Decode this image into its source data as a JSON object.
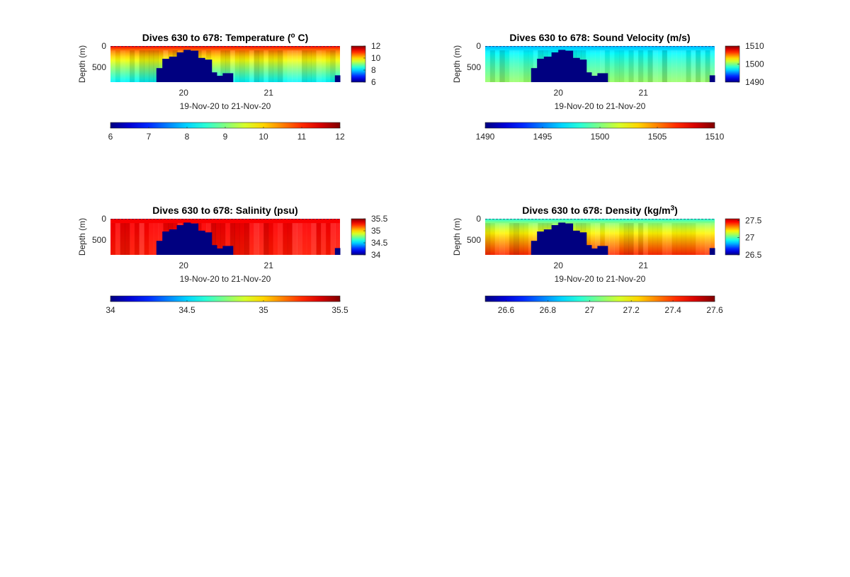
{
  "figure": {
    "background": "#ffffff"
  },
  "chart_data": [
    {
      "type": "heatmap",
      "title_text": "Dives 630 to 678: Temperature (",
      "title_sup": "o",
      "title_tail": " C)",
      "ylabel": "Depth (m)",
      "xlabel": "19-Nov-20 to 21-Nov-20",
      "xlim": [
        19.14,
        21.84
      ],
      "xticks": [
        20,
        21
      ],
      "xtick_labels": [
        "20",
        "21"
      ],
      "ylim": [
        0,
        850
      ],
      "yticks": [
        0,
        500
      ],
      "ytick_labels": [
        "0",
        "500"
      ],
      "color_scale": "jet",
      "clim": [
        6,
        12
      ],
      "side_colorbar_ticks": [
        12,
        10,
        8,
        6
      ],
      "side_colorbar_labels": [
        "12",
        "10",
        "8",
        "6"
      ],
      "bottom_colorbar_ticks": [
        6,
        7,
        8,
        9,
        10,
        11,
        12
      ],
      "bottom_colorbar_labels": [
        "6",
        "7",
        "8",
        "9",
        "10",
        "11",
        "12"
      ],
      "surface_value": 11.3,
      "bottom_value": 8.2,
      "no_data_regions": [
        {
          "x": [
            19.68,
            19.75
          ],
          "depth_top": 520
        },
        {
          "x": [
            19.75,
            19.83
          ],
          "depth_top": 300
        },
        {
          "x": [
            19.83,
            19.92
          ],
          "depth_top": 250
        },
        {
          "x": [
            19.92,
            20.0
          ],
          "depth_top": 150
        },
        {
          "x": [
            20.0,
            20.08
          ],
          "depth_top": 90
        },
        {
          "x": [
            20.08,
            20.17
          ],
          "depth_top": 110
        },
        {
          "x": [
            20.17,
            20.25
          ],
          "depth_top": 280
        },
        {
          "x": [
            20.25,
            20.33
          ],
          "depth_top": 320
        },
        {
          "x": [
            20.33,
            20.39
          ],
          "depth_top": 620
        },
        {
          "x": [
            20.39,
            20.46
          ],
          "depth_top": 700
        },
        {
          "x": [
            20.46,
            20.58
          ],
          "depth_top": 640
        },
        {
          "x": [
            21.78,
            21.84
          ],
          "depth_top": 690
        }
      ]
    },
    {
      "type": "heatmap",
      "title_text": "Dives 630 to 678: Sound Velocity (m/s)",
      "title_sup": "",
      "title_tail": "",
      "ylabel": "Depth (m)",
      "xlabel": "19-Nov-20 to 21-Nov-20",
      "xlim": [
        19.14,
        21.84
      ],
      "xticks": [
        20,
        21
      ],
      "xtick_labels": [
        "20",
        "21"
      ],
      "ylim": [
        0,
        850
      ],
      "yticks": [
        0,
        500
      ],
      "ytick_labels": [
        "0",
        "500"
      ],
      "color_scale": "jet",
      "clim": [
        1490,
        1510
      ],
      "side_colorbar_ticks": [
        1510,
        1500,
        1490
      ],
      "side_colorbar_labels": [
        "1510",
        "1500",
        "1490"
      ],
      "bottom_colorbar_ticks": [
        1490,
        1495,
        1500,
        1505,
        1510
      ],
      "bottom_colorbar_labels": [
        "1490",
        "1495",
        "1500",
        "1505",
        "1510"
      ],
      "surface_value": 1496,
      "bottom_value": 1500.5,
      "no_data_regions": [
        {
          "x": [
            19.68,
            19.75
          ],
          "depth_top": 520
        },
        {
          "x": [
            19.75,
            19.83
          ],
          "depth_top": 300
        },
        {
          "x": [
            19.83,
            19.92
          ],
          "depth_top": 250
        },
        {
          "x": [
            19.92,
            20.0
          ],
          "depth_top": 150
        },
        {
          "x": [
            20.0,
            20.08
          ],
          "depth_top": 90
        },
        {
          "x": [
            20.08,
            20.17
          ],
          "depth_top": 110
        },
        {
          "x": [
            20.17,
            20.25
          ],
          "depth_top": 280
        },
        {
          "x": [
            20.25,
            20.33
          ],
          "depth_top": 320
        },
        {
          "x": [
            20.33,
            20.39
          ],
          "depth_top": 620
        },
        {
          "x": [
            20.39,
            20.46
          ],
          "depth_top": 700
        },
        {
          "x": [
            20.46,
            20.58
          ],
          "depth_top": 640
        },
        {
          "x": [
            21.78,
            21.84
          ],
          "depth_top": 690
        }
      ]
    },
    {
      "type": "heatmap",
      "title_text": "Dives 630 to 678: Salinity (psu)",
      "title_sup": "",
      "title_tail": "",
      "ylabel": "Depth (m)",
      "xlabel": "19-Nov-20 to 21-Nov-20",
      "xlim": [
        19.14,
        21.84
      ],
      "xticks": [
        20,
        21
      ],
      "xtick_labels": [
        "20",
        "21"
      ],
      "ylim": [
        0,
        850
      ],
      "yticks": [
        0,
        500
      ],
      "ytick_labels": [
        "0",
        "500"
      ],
      "color_scale": "jet",
      "clim": [
        34,
        35.5
      ],
      "side_colorbar_ticks": [
        35.5,
        35,
        34.5,
        34
      ],
      "side_colorbar_labels": [
        "35.5",
        "35",
        "34.5",
        "34"
      ],
      "bottom_colorbar_ticks": [
        34,
        34.5,
        35,
        35.5
      ],
      "bottom_colorbar_labels": [
        "34",
        "34.5",
        "35",
        "35.5"
      ],
      "surface_value": 35.33,
      "bottom_value": 35.28,
      "no_data_regions": [
        {
          "x": [
            19.68,
            19.75
          ],
          "depth_top": 520
        },
        {
          "x": [
            19.75,
            19.83
          ],
          "depth_top": 300
        },
        {
          "x": [
            19.83,
            19.92
          ],
          "depth_top": 250
        },
        {
          "x": [
            19.92,
            20.0
          ],
          "depth_top": 150
        },
        {
          "x": [
            20.0,
            20.08
          ],
          "depth_top": 90
        },
        {
          "x": [
            20.08,
            20.17
          ],
          "depth_top": 110
        },
        {
          "x": [
            20.17,
            20.25
          ],
          "depth_top": 280
        },
        {
          "x": [
            20.25,
            20.33
          ],
          "depth_top": 320
        },
        {
          "x": [
            20.33,
            20.39
          ],
          "depth_top": 620
        },
        {
          "x": [
            20.39,
            20.46
          ],
          "depth_top": 700
        },
        {
          "x": [
            20.46,
            20.58
          ],
          "depth_top": 640
        },
        {
          "x": [
            21.78,
            21.84
          ],
          "depth_top": 690
        }
      ]
    },
    {
      "type": "heatmap",
      "title_text": "Dives 630 to 678: Density (kg/m",
      "title_sup": "3",
      "title_tail": ")",
      "ylabel": "Depth (m)",
      "xlabel": "19-Nov-20 to 21-Nov-20",
      "xlim": [
        19.14,
        21.84
      ],
      "xticks": [
        20,
        21
      ],
      "xtick_labels": [
        "20",
        "21"
      ],
      "ylim": [
        0,
        850
      ],
      "yticks": [
        0,
        500
      ],
      "ytick_labels": [
        "0",
        "500"
      ],
      "color_scale": "jet",
      "clim": [
        26.5,
        27.6
      ],
      "side_colorbar_range": [
        26.5,
        27.55
      ],
      "side_colorbar_ticks": [
        27.5,
        27,
        26.5
      ],
      "side_colorbar_labels": [
        "27.5",
        "27",
        "26.5"
      ],
      "bottom_colorbar_ticks": [
        26.6,
        26.8,
        27,
        27.2,
        27.4,
        27.6
      ],
      "bottom_colorbar_labels": [
        "26.6",
        "26.8",
        "27",
        "27.2",
        "27.4",
        "27.6"
      ],
      "surface_value": 26.95,
      "bottom_value": 27.42,
      "no_data_regions": [
        {
          "x": [
            19.68,
            19.75
          ],
          "depth_top": 520
        },
        {
          "x": [
            19.75,
            19.83
          ],
          "depth_top": 300
        },
        {
          "x": [
            19.83,
            19.92
          ],
          "depth_top": 250
        },
        {
          "x": [
            19.92,
            20.0
          ],
          "depth_top": 150
        },
        {
          "x": [
            20.0,
            20.08
          ],
          "depth_top": 90
        },
        {
          "x": [
            20.08,
            20.17
          ],
          "depth_top": 110
        },
        {
          "x": [
            20.17,
            20.25
          ],
          "depth_top": 280
        },
        {
          "x": [
            20.25,
            20.33
          ],
          "depth_top": 320
        },
        {
          "x": [
            20.33,
            20.39
          ],
          "depth_top": 620
        },
        {
          "x": [
            20.39,
            20.46
          ],
          "depth_top": 700
        },
        {
          "x": [
            20.46,
            20.58
          ],
          "depth_top": 640
        },
        {
          "x": [
            21.78,
            21.84
          ],
          "depth_top": 690
        }
      ]
    }
  ]
}
